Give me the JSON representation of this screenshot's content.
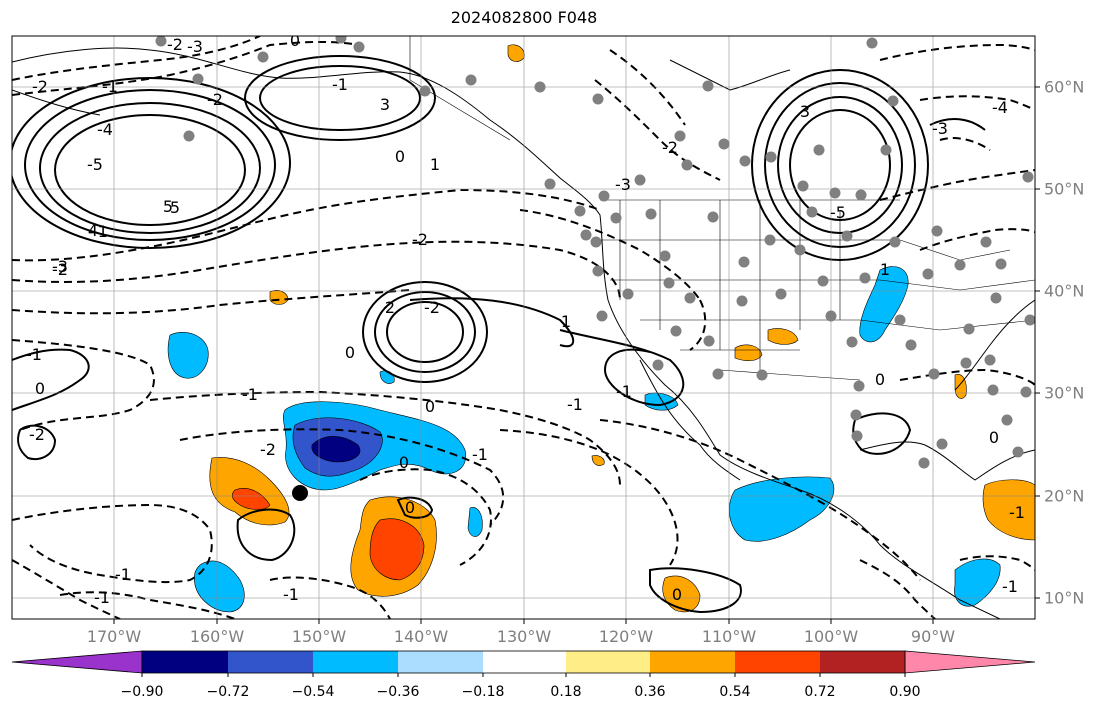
{
  "title": "2024082800 F048",
  "lon_labels": [
    "170°W",
    "160°W",
    "150°W",
    "140°W",
    "130°W",
    "120°W",
    "110°W",
    "100°W",
    "90°W"
  ],
  "lat_labels": [
    "60°N",
    "50°N",
    "40°N",
    "30°N",
    "20°N",
    "10°N"
  ],
  "colorbar": {
    "ticks": [
      "−0.90",
      "−0.72",
      "−0.54",
      "−0.36",
      "−0.18",
      "0.18",
      "0.36",
      "0.54",
      "0.72",
      "0.90"
    ],
    "colors": [
      "#9933cc",
      "#000080",
      "#3355cc",
      "#00bbff",
      "#aaddff",
      "#ffffff",
      "#ffee88",
      "#ffa500",
      "#ff4400",
      "#b22222",
      "#ff88aa"
    ]
  },
  "contour_labels": [
    "-2",
    "-3",
    "-2",
    "-1",
    "-2",
    "-4",
    "-5",
    "5",
    "4",
    "-3",
    "3",
    "0",
    "-1",
    "0",
    "1",
    "-2",
    "-2",
    "2",
    "-2",
    "0",
    "-1",
    "0",
    "-1",
    "0",
    "-1",
    "-2",
    "-1",
    "-2",
    "0",
    "0",
    "-1",
    "-1",
    "-1",
    "-3",
    "-2",
    "3",
    "-3",
    "-4",
    "-5",
    "5",
    "-1",
    "1",
    "0",
    "0",
    "-1",
    "1",
    "-1",
    "0",
    "-1"
  ],
  "colors": {
    "contour": "#000000",
    "grid": "#888888",
    "station": "#808080",
    "lon_lat_label": "#7f7f7f"
  }
}
